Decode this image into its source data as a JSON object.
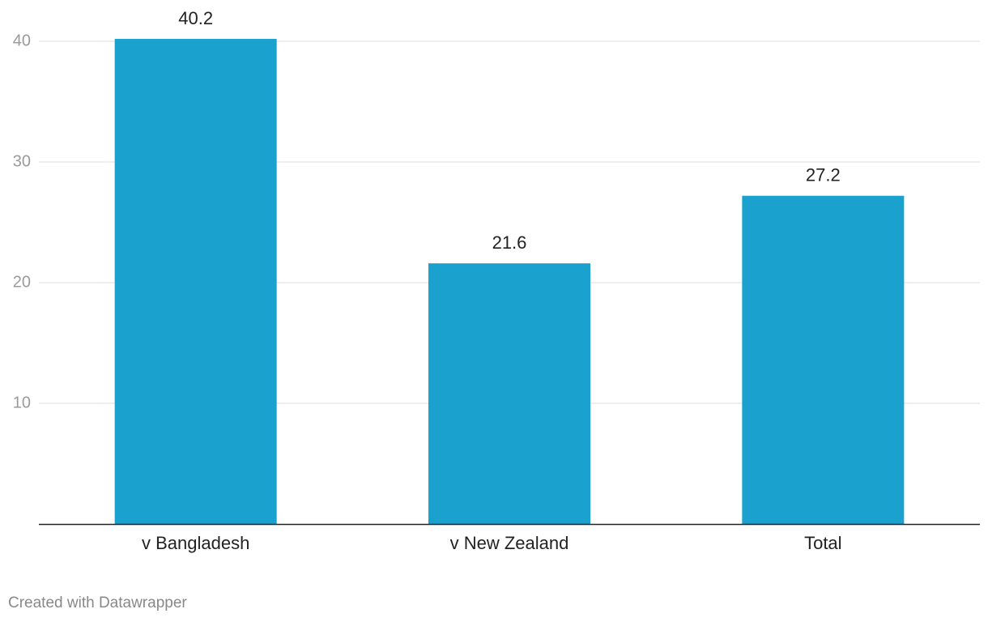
{
  "chart_data": {
    "type": "bar",
    "categories": [
      "v Bangladesh",
      "v New Zealand",
      "Total"
    ],
    "values": [
      40.2,
      21.6,
      27.2
    ],
    "color": "#1aa1cd",
    "ylim": [
      0,
      40
    ],
    "yticks": [
      10,
      20,
      30,
      40
    ],
    "grid": true,
    "credit": "Created with Datawrapper"
  }
}
